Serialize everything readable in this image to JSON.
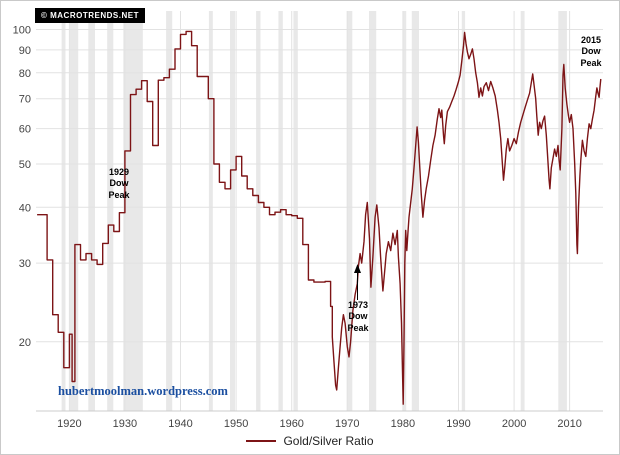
{
  "chart_data": {
    "type": "line",
    "title": "",
    "xlabel": "",
    "ylabel": "",
    "copyright": "© MACROTRENDS.NET",
    "watermark": "hubertmoolman.wordpress.com",
    "legend": {
      "label": "Gold/Silver Ratio"
    },
    "y_scale": "log",
    "grid": true,
    "xlim": [
      1914,
      2016
    ],
    "ylim": [
      14,
      110
    ],
    "x_ticks": [
      1920,
      1930,
      1940,
      1950,
      1960,
      1970,
      1980,
      1990,
      2000,
      2010
    ],
    "y_ticks": [
      20,
      30,
      40,
      50,
      60,
      70,
      80,
      90,
      100
    ],
    "step_until": 1967.2,
    "colors": {
      "line": "#7d1416",
      "band": "#e8e8e8",
      "grid": "#e2e2e2",
      "axis_line": "#cccccc",
      "axis_text": "#444444",
      "watermark": "#1b4fa0",
      "annotation_text": "#000000",
      "badge_bg": "#000000",
      "badge_text": "#ffffff"
    },
    "annotations": [
      {
        "label": "1929\nDow\nPeak",
        "x": 1929.0,
        "y": 46
      },
      {
        "label": "1973\nDow\nPeak",
        "x": 1971.8,
        "y": 21,
        "arrow_to_y": 29
      },
      {
        "label": "2015\nDow\nPeak",
        "x": 2013.8,
        "y": 92
      }
    ],
    "recessions": [
      [
        1918.6,
        1919.3
      ],
      [
        1920.1,
        1921.6
      ],
      [
        1923.4,
        1924.6
      ],
      [
        1926.8,
        1927.9
      ],
      [
        1929.7,
        1933.2
      ],
      [
        1937.4,
        1938.5
      ],
      [
        1945.1,
        1945.8
      ],
      [
        1948.9,
        1949.8
      ],
      [
        1953.6,
        1954.4
      ],
      [
        1957.6,
        1958.4
      ],
      [
        1960.3,
        1961.1
      ],
      [
        1969.9,
        1970.9
      ],
      [
        1973.9,
        1975.2
      ],
      [
        1980.0,
        1980.6
      ],
      [
        1981.6,
        1982.9
      ],
      [
        1990.6,
        1991.2
      ],
      [
        2001.2,
        2001.9
      ],
      [
        2007.95,
        2009.5
      ]
    ],
    "series": [
      {
        "name": "Gold/Silver Ratio",
        "points": [
          [
            1914.2,
            38.5
          ],
          [
            1916.0,
            30.5
          ],
          [
            1917.0,
            23.0
          ],
          [
            1918.0,
            21.0
          ],
          [
            1919.0,
            17.5
          ],
          [
            1920.0,
            20.8
          ],
          [
            1920.5,
            16.3
          ],
          [
            1921.0,
            33.0
          ],
          [
            1922.0,
            30.5
          ],
          [
            1923.0,
            31.5
          ],
          [
            1924.0,
            30.5
          ],
          [
            1925.0,
            29.8
          ],
          [
            1926.0,
            33.2
          ],
          [
            1927.0,
            36.5
          ],
          [
            1928.0,
            35.3
          ],
          [
            1929.0,
            38.9
          ],
          [
            1930.0,
            53.5
          ],
          [
            1931.0,
            71.5
          ],
          [
            1932.0,
            73.5
          ],
          [
            1933.0,
            76.8
          ],
          [
            1934.0,
            69.0
          ],
          [
            1935.0,
            55.0
          ],
          [
            1936.0,
            77.0
          ],
          [
            1937.0,
            78.0
          ],
          [
            1938.0,
            81.5
          ],
          [
            1939.0,
            90.5
          ],
          [
            1940.0,
            97.5
          ],
          [
            1941.0,
            99.0
          ],
          [
            1942.0,
            92.0
          ],
          [
            1943.0,
            78.5
          ],
          [
            1944.0,
            78.5
          ],
          [
            1945.0,
            70.0
          ],
          [
            1946.0,
            50.0
          ],
          [
            1947.0,
            45.5
          ],
          [
            1948.0,
            44.0
          ],
          [
            1949.0,
            48.5
          ],
          [
            1950.0,
            52.0
          ],
          [
            1951.0,
            47.0
          ],
          [
            1952.0,
            44.0
          ],
          [
            1953.0,
            42.5
          ],
          [
            1954.0,
            41.0
          ],
          [
            1955.0,
            40.0
          ],
          [
            1956.0,
            38.5
          ],
          [
            1957.0,
            39.0
          ],
          [
            1958.0,
            39.5
          ],
          [
            1959.0,
            38.5
          ],
          [
            1960.0,
            38.3
          ],
          [
            1961.0,
            37.8
          ],
          [
            1962.0,
            33.0
          ],
          [
            1963.0,
            27.5
          ],
          [
            1964.0,
            27.2
          ],
          [
            1965.0,
            27.2
          ],
          [
            1966.0,
            27.3
          ],
          [
            1967.0,
            24.0
          ],
          [
            1967.3,
            20.5
          ],
          [
            1967.6,
            18.0
          ],
          [
            1967.9,
            16.0
          ],
          [
            1968.1,
            15.6
          ],
          [
            1968.4,
            17.5
          ],
          [
            1968.7,
            19.5
          ],
          [
            1969.0,
            21.5
          ],
          [
            1969.3,
            23.0
          ],
          [
            1969.6,
            22.0
          ],
          [
            1970.0,
            19.5
          ],
          [
            1970.3,
            18.5
          ],
          [
            1970.6,
            20.0
          ],
          [
            1971.0,
            23.5
          ],
          [
            1971.4,
            25.5
          ],
          [
            1971.8,
            27.0
          ],
          [
            1972.0,
            29.5
          ],
          [
            1972.3,
            31.5
          ],
          [
            1972.6,
            30.0
          ],
          [
            1973.0,
            33.5
          ],
          [
            1973.3,
            38.5
          ],
          [
            1973.6,
            41.0
          ],
          [
            1974.0,
            34.0
          ],
          [
            1974.25,
            26.5
          ],
          [
            1974.6,
            31.0
          ],
          [
            1975.0,
            38.0
          ],
          [
            1975.3,
            40.5
          ],
          [
            1975.7,
            36.0
          ],
          [
            1976.0,
            31.0
          ],
          [
            1976.4,
            26.0
          ],
          [
            1976.8,
            29.5
          ],
          [
            1977.0,
            31.5
          ],
          [
            1977.4,
            33.5
          ],
          [
            1977.8,
            32.0
          ],
          [
            1978.2,
            35.0
          ],
          [
            1978.6,
            33.0
          ],
          [
            1979.0,
            35.5
          ],
          [
            1979.2,
            31.0
          ],
          [
            1979.5,
            27.0
          ],
          [
            1979.75,
            22.0
          ],
          [
            1979.9,
            18.0
          ],
          [
            1980.05,
            14.5
          ],
          [
            1980.2,
            20.0
          ],
          [
            1980.35,
            30.0
          ],
          [
            1980.5,
            35.5
          ],
          [
            1980.7,
            32.0
          ],
          [
            1980.9,
            35.0
          ],
          [
            1981.1,
            38.0
          ],
          [
            1981.4,
            41.0
          ],
          [
            1981.7,
            44.0
          ],
          [
            1982.0,
            49.0
          ],
          [
            1982.3,
            55.0
          ],
          [
            1982.55,
            60.5
          ],
          [
            1982.8,
            56.0
          ],
          [
            1983.0,
            50.0
          ],
          [
            1983.3,
            43.0
          ],
          [
            1983.6,
            38.0
          ],
          [
            1983.9,
            41.5
          ],
          [
            1984.2,
            44.0
          ],
          [
            1984.6,
            47.0
          ],
          [
            1985.0,
            51.0
          ],
          [
            1985.4,
            55.0
          ],
          [
            1985.8,
            58.0
          ],
          [
            1986.2,
            63.0
          ],
          [
            1986.5,
            66.5
          ],
          [
            1986.8,
            63.5
          ],
          [
            1987.0,
            66.0
          ],
          [
            1987.3,
            58.0
          ],
          [
            1987.45,
            55.5
          ],
          [
            1987.7,
            61.0
          ],
          [
            1988.0,
            65.5
          ],
          [
            1988.4,
            67.0
          ],
          [
            1988.8,
            69.0
          ],
          [
            1989.2,
            71.0
          ],
          [
            1989.6,
            73.5
          ],
          [
            1990.0,
            76.5
          ],
          [
            1990.3,
            79.0
          ],
          [
            1990.6,
            85.0
          ],
          [
            1990.9,
            92.0
          ],
          [
            1991.1,
            98.5
          ],
          [
            1991.35,
            93.0
          ],
          [
            1991.6,
            89.0
          ],
          [
            1991.9,
            86.0
          ],
          [
            1992.2,
            88.0
          ],
          [
            1992.5,
            90.5
          ],
          [
            1992.8,
            86.0
          ],
          [
            1993.1,
            80.0
          ],
          [
            1993.4,
            76.0
          ],
          [
            1993.7,
            70.5
          ],
          [
            1994.0,
            74.0
          ],
          [
            1994.3,
            71.0
          ],
          [
            1994.6,
            74.5
          ],
          [
            1995.0,
            76.0
          ],
          [
            1995.4,
            73.0
          ],
          [
            1995.8,
            76.5
          ],
          [
            1996.2,
            74.0
          ],
          [
            1996.6,
            71.0
          ],
          [
            1997.0,
            66.0
          ],
          [
            1997.3,
            62.0
          ],
          [
            1997.6,
            57.0
          ],
          [
            1997.9,
            50.0
          ],
          [
            1998.1,
            46.0
          ],
          [
            1998.35,
            49.5
          ],
          [
            1998.6,
            54.0
          ],
          [
            1998.9,
            57.0
          ],
          [
            1999.2,
            53.5
          ],
          [
            1999.6,
            55.0
          ],
          [
            2000.0,
            57.0
          ],
          [
            2000.4,
            55.5
          ],
          [
            2000.8,
            59.0
          ],
          [
            2001.2,
            62.0
          ],
          [
            2001.6,
            64.5
          ],
          [
            2002.0,
            67.0
          ],
          [
            2002.4,
            69.5
          ],
          [
            2002.8,
            72.0
          ],
          [
            2003.1,
            76.0
          ],
          [
            2003.35,
            79.5
          ],
          [
            2003.6,
            75.0
          ],
          [
            2003.9,
            70.0
          ],
          [
            2004.1,
            64.0
          ],
          [
            2004.35,
            58.0
          ],
          [
            2004.6,
            62.0
          ],
          [
            2004.9,
            60.0
          ],
          [
            2005.2,
            62.5
          ],
          [
            2005.5,
            64.0
          ],
          [
            2005.8,
            58.0
          ],
          [
            2006.0,
            53.0
          ],
          [
            2006.3,
            46.0
          ],
          [
            2006.45,
            44.0
          ],
          [
            2006.7,
            49.0
          ],
          [
            2007.0,
            51.5
          ],
          [
            2007.3,
            54.0
          ],
          [
            2007.6,
            52.0
          ],
          [
            2007.9,
            55.0
          ],
          [
            2008.1,
            51.0
          ],
          [
            2008.3,
            48.5
          ],
          [
            2008.6,
            60.0
          ],
          [
            2008.8,
            79.0
          ],
          [
            2008.95,
            83.5
          ],
          [
            2009.2,
            74.0
          ],
          [
            2009.5,
            68.0
          ],
          [
            2009.8,
            64.0
          ],
          [
            2010.0,
            62.0
          ],
          [
            2010.3,
            64.5
          ],
          [
            2010.6,
            60.0
          ],
          [
            2010.9,
            50.0
          ],
          [
            2011.1,
            43.0
          ],
          [
            2011.3,
            33.0
          ],
          [
            2011.4,
            31.5
          ],
          [
            2011.6,
            40.0
          ],
          [
            2011.85,
            47.0
          ],
          [
            2012.0,
            51.0
          ],
          [
            2012.3,
            56.5
          ],
          [
            2012.6,
            53.5
          ],
          [
            2012.9,
            52.0
          ],
          [
            2013.2,
            57.0
          ],
          [
            2013.5,
            61.5
          ],
          [
            2013.8,
            60.0
          ],
          [
            2014.1,
            63.0
          ],
          [
            2014.4,
            66.0
          ],
          [
            2014.7,
            71.0
          ],
          [
            2014.9,
            74.0
          ],
          [
            2015.1,
            72.0
          ],
          [
            2015.3,
            70.5
          ],
          [
            2015.45,
            74.0
          ],
          [
            2015.6,
            77.5
          ]
        ]
      }
    ]
  }
}
